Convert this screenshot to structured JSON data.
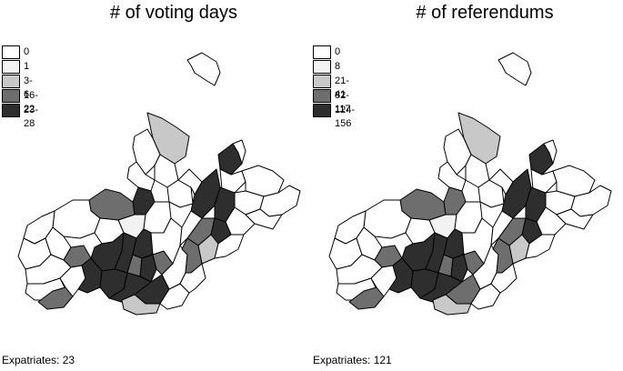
{
  "colors": {
    "c0": "#ffffff",
    "c1": "#f2f2f2",
    "c2": "#c8c8c8",
    "c3": "#6e6e6e",
    "c4": "#2e2e2e"
  },
  "left": {
    "title": "# of voting days",
    "legend": [
      "0",
      "1",
      "3-6",
      "16-22",
      "23-28"
    ],
    "footer": "Expatriates: 23"
  },
  "right": {
    "title": "# of referendums",
    "legend": [
      "0",
      "8",
      "21-41",
      "82-117",
      "124-156"
    ],
    "footer": "Expatriates: 121"
  }
}
